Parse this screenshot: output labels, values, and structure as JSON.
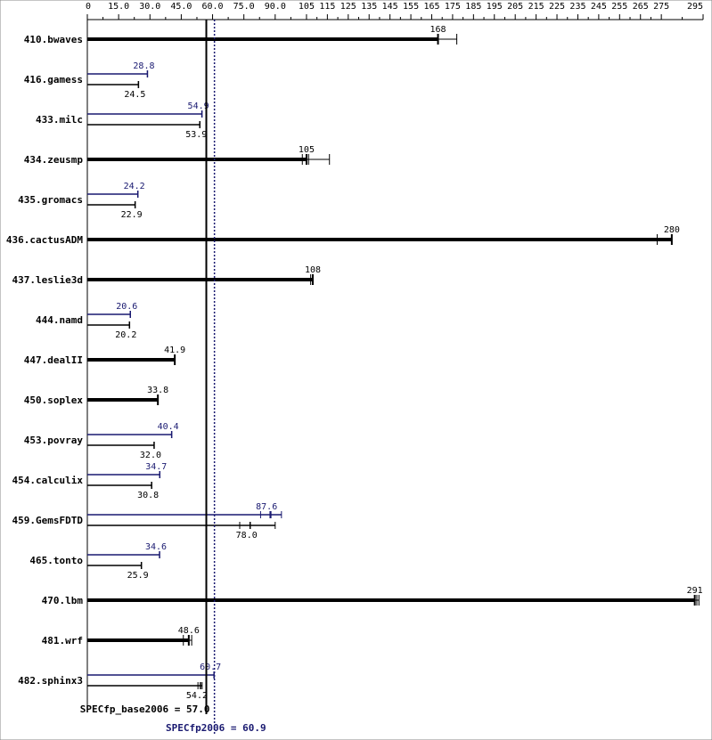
{
  "chart_data": {
    "type": "bar",
    "xlim": [
      0,
      295
    ],
    "tick_labels": [
      "0",
      "15.0",
      "30.0",
      "45.0",
      "60.0",
      "75.0",
      "90.0",
      "105",
      "115",
      "125",
      "135",
      "145",
      "155",
      "165",
      "175",
      "185",
      "195",
      "205",
      "215",
      "225",
      "235",
      "245",
      "255",
      "265",
      "275",
      "295"
    ],
    "tick_values": [
      0,
      15,
      30,
      45,
      60,
      75,
      90,
      105,
      115,
      125,
      135,
      145,
      155,
      165,
      175,
      185,
      195,
      205,
      215,
      225,
      235,
      245,
      255,
      265,
      275,
      295
    ],
    "colors": {
      "base": "#000000",
      "peak": "#191970",
      "axis": "#000000"
    },
    "benchmarks": [
      {
        "name": "410.bwaves",
        "base": 168,
        "base_label": "168",
        "peak": null,
        "peak_label": "",
        "runs": [
          168,
          177
        ]
      },
      {
        "name": "416.gamess",
        "base": 24.5,
        "base_label": "24.5",
        "peak": 28.8,
        "peak_label": "28.8"
      },
      {
        "name": "433.milc",
        "base": 53.9,
        "base_label": "53.9",
        "peak": 54.9,
        "peak_label": "54.9"
      },
      {
        "name": "434.zeusmp",
        "base": 105,
        "base_label": "105",
        "peak": null,
        "peak_label": "",
        "runs": [
          103,
          106,
          116
        ]
      },
      {
        "name": "435.gromacs",
        "base": 22.9,
        "base_label": "22.9",
        "peak": 24.2,
        "peak_label": "24.2"
      },
      {
        "name": "436.cactusADM",
        "base": 280,
        "base_label": "280",
        "peak": null,
        "peak_label": "",
        "runs": [
          273,
          280
        ]
      },
      {
        "name": "437.leslie3d",
        "base": 108,
        "base_label": "108",
        "peak": null,
        "peak_label": "",
        "runs": [
          107,
          108
        ]
      },
      {
        "name": "444.namd",
        "base": 20.2,
        "base_label": "20.2",
        "peak": 20.6,
        "peak_label": "20.6"
      },
      {
        "name": "447.dealII",
        "base": 41.9,
        "base_label": "41.9",
        "peak": null,
        "peak_label": ""
      },
      {
        "name": "450.soplex",
        "base": 33.8,
        "base_label": "33.8",
        "peak": null,
        "peak_label": ""
      },
      {
        "name": "453.povray",
        "base": 32.0,
        "base_label": "32.0",
        "peak": 40.4,
        "peak_label": "40.4"
      },
      {
        "name": "454.calculix",
        "base": 30.8,
        "base_label": "30.8",
        "peak": 34.7,
        "peak_label": "34.7"
      },
      {
        "name": "459.GemsFDTD",
        "base": 78.0,
        "base_label": "78.0",
        "peak": 87.6,
        "peak_label": "87.6",
        "base_runs": [
          73,
          78,
          90
        ],
        "peak_runs": [
          83,
          88,
          93
        ]
      },
      {
        "name": "465.tonto",
        "base": 25.9,
        "base_label": "25.9",
        "peak": 34.6,
        "peak_label": "34.6"
      },
      {
        "name": "470.lbm",
        "base": 291,
        "base_label": "291",
        "peak": null,
        "peak_label": "",
        "runs": [
          291,
          292,
          293
        ]
      },
      {
        "name": "481.wrf",
        "base": 48.6,
        "base_label": "48.6",
        "peak": null,
        "peak_label": "",
        "runs": [
          46,
          48.6,
          50
        ]
      },
      {
        "name": "482.sphinx3",
        "base": 54.2,
        "base_label": "54.2",
        "peak": 60.7,
        "peak_label": "60.7",
        "base_runs": [
          53,
          55
        ]
      }
    ],
    "summary": {
      "base_label": "SPECfp_base2006 = 57.0",
      "base_value": 57.0,
      "peak_label": "SPECfp2006 = 60.9",
      "peak_value": 60.9
    }
  }
}
